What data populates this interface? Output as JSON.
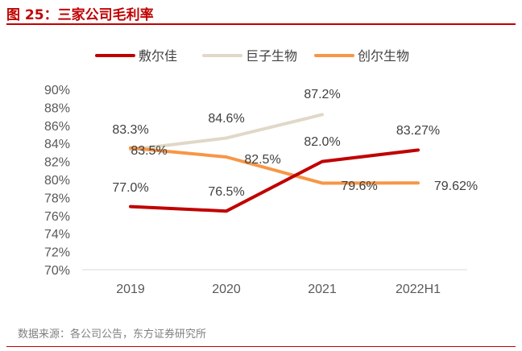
{
  "header": {
    "title": "图 25：三家公司毛利率"
  },
  "footer": {
    "source": "数据来源：各公司公告，东方证券研究所"
  },
  "chart_data": {
    "type": "line",
    "title": "图 25：三家公司毛利率",
    "xlabel": "",
    "ylabel": "",
    "categories": [
      "2019",
      "2020",
      "2021",
      "2022H1"
    ],
    "ylim": [
      70,
      90
    ],
    "y_ticks": [
      "70%",
      "72%",
      "74%",
      "76%",
      "78%",
      "80%",
      "82%",
      "84%",
      "86%",
      "88%",
      "90%"
    ],
    "grid": false,
    "legend_position": "top",
    "series": [
      {
        "name": "敷尔佳",
        "color": "#c00000",
        "values": [
          77.0,
          76.5,
          82.0,
          83.27
        ],
        "labels": [
          "77.0%",
          "76.5%",
          "82.0%",
          "83.27%"
        ]
      },
      {
        "name": "巨子生物",
        "color": "#e0d8c8",
        "values": [
          83.3,
          84.6,
          87.2,
          null
        ],
        "labels": [
          "83.3%",
          "84.6%",
          "87.2%",
          null
        ]
      },
      {
        "name": "创尔生物",
        "color": "#f79646",
        "values": [
          83.5,
          82.5,
          79.6,
          79.62
        ],
        "labels": [
          "83.5%",
          "82.5%",
          "79.6%",
          "79.62%"
        ]
      }
    ]
  }
}
